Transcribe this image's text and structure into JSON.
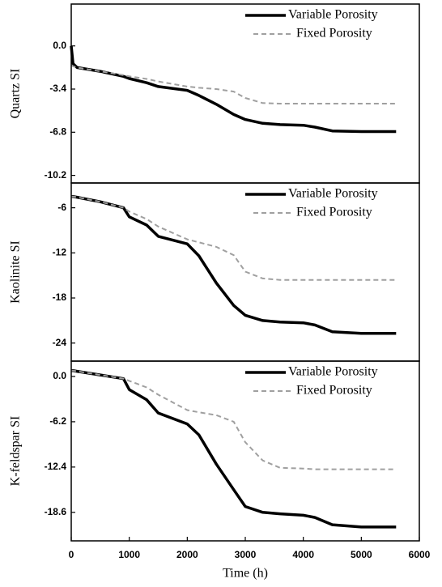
{
  "chart_data": [
    {
      "type": "line",
      "ylabel": "Quartz SI",
      "x": [
        0,
        30,
        100,
        500,
        900,
        1000,
        1300,
        1500,
        2000,
        2200,
        2500,
        2800,
        3000,
        3300,
        3600,
        4000,
        4200,
        4500,
        5000,
        5600
      ],
      "series": [
        {
          "name": "Variable Porosity",
          "color": "#000000",
          "values": [
            0,
            -1.4,
            -1.7,
            -2.0,
            -2.4,
            -2.57,
            -2.9,
            -3.2,
            -3.5,
            -3.9,
            -4.6,
            -5.4,
            -5.8,
            -6.1,
            -6.2,
            -6.25,
            -6.4,
            -6.7,
            -6.75,
            -6.75
          ]
        },
        {
          "name": "Fixed Porosity",
          "color": "#a0a0a0",
          "values": [
            -1.5,
            -1.6,
            -1.7,
            -2.0,
            -2.3,
            -2.4,
            -2.6,
            -2.8,
            -3.2,
            -3.3,
            -3.4,
            -3.6,
            -4.1,
            -4.5,
            -4.55,
            -4.55,
            -4.55,
            -4.55,
            -4.55,
            -4.55
          ]
        }
      ],
      "xlim": [
        0,
        6000
      ],
      "ylim": [
        -10.8,
        3.3
      ],
      "yticks": [
        {
          "value": 0,
          "label": "0.0"
        },
        -3.4,
        -6.8,
        -10.2
      ],
      "legend": "upper right"
    },
    {
      "type": "line",
      "ylabel": "Kaolinite SI",
      "x": [
        0,
        30,
        100,
        500,
        900,
        1000,
        1300,
        1500,
        2000,
        2200,
        2500,
        2800,
        3000,
        3300,
        3600,
        4000,
        4200,
        4500,
        5000,
        5600
      ],
      "series": [
        {
          "name": "Variable Porosity",
          "color": "#000000",
          "values": [
            -4.5,
            -4.5,
            -4.6,
            -5.2,
            -6.0,
            -7.2,
            -8.3,
            -9.8,
            -10.8,
            -12.4,
            -16,
            -19,
            -20.3,
            -21,
            -21.2,
            -21.3,
            -21.6,
            -22.5,
            -22.7,
            -22.7
          ]
        },
        {
          "name": "Fixed Porosity",
          "color": "#a0a0a0",
          "values": [
            -4.5,
            -4.5,
            -4.6,
            -5.2,
            -6.0,
            -6.5,
            -7.5,
            -8.5,
            -10.2,
            -10.6,
            -11.2,
            -12.3,
            -14.5,
            -15.4,
            -15.6,
            -15.6,
            -15.6,
            -15.6,
            -15.6,
            -15.6
          ]
        }
      ],
      "xlim": [
        0,
        6000
      ],
      "ylim": [
        -26.4,
        -2.7
      ],
      "yticks": [
        -6,
        -12,
        -18,
        -24
      ],
      "legend": "upper right"
    },
    {
      "type": "line",
      "ylabel": "K-feldspar SI",
      "xlabel": "Time (h)",
      "x": [
        0,
        30,
        100,
        500,
        900,
        1000,
        1300,
        1500,
        2000,
        2200,
        2500,
        2800,
        3000,
        3300,
        3600,
        4000,
        4200,
        4500,
        5000,
        5600
      ],
      "series": [
        {
          "name": "Variable Porosity",
          "color": "#000000",
          "values": [
            0.8,
            0.8,
            0.7,
            0.2,
            -0.3,
            -1.8,
            -3.2,
            -5,
            -6.5,
            -8,
            -12,
            -15.5,
            -17.8,
            -18.6,
            -18.8,
            -19,
            -19.3,
            -20.3,
            -20.6,
            -20.6
          ]
        },
        {
          "name": "Fixed Porosity",
          "color": "#a0a0a0",
          "values": [
            0.8,
            0.8,
            0.7,
            0.2,
            -0.3,
            -0.6,
            -1.5,
            -2.5,
            -4.6,
            -4.9,
            -5.3,
            -6.2,
            -9,
            -11.5,
            -12.5,
            -12.6,
            -12.7,
            -12.7,
            -12.7,
            -12.7
          ]
        }
      ],
      "xlim": [
        0,
        6000
      ],
      "ylim": [
        -22.5,
        2.1
      ],
      "xticks": [
        0,
        1000,
        2000,
        3000,
        4000,
        5000,
        6000
      ],
      "yticks": [
        {
          "value": 0,
          "label": "0.0"
        },
        -6.2,
        -12.4,
        -18.6
      ],
      "legend": "upper right"
    }
  ]
}
